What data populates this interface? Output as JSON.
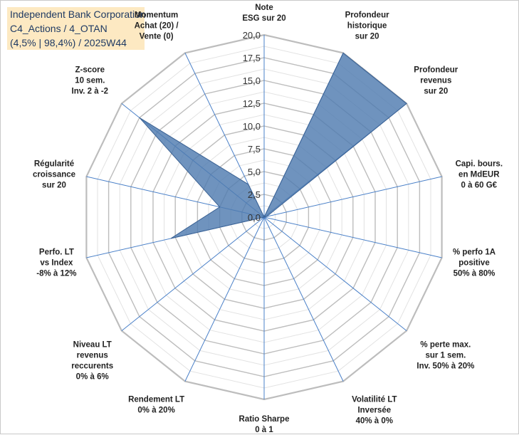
{
  "title_lines": [
    "Independent Bank Corporation",
    "C4_Actions / 4_OTAN",
    "(4,5% | 98,4%) / 2025W44"
  ],
  "colors": {
    "fill": "#4f7bb0",
    "stroke": "#3b6294",
    "grid": "#c8c8c8",
    "spoke": "#4a80c8",
    "title_bg": "#fde9c2"
  },
  "chart_data": {
    "type": "radar",
    "ylim": [
      0,
      20
    ],
    "tick_labels": [
      "0,0",
      "2,5",
      "5,0",
      "7,5",
      "10,0",
      "12,5",
      "15,0",
      "17,5",
      "20,0"
    ],
    "axes": [
      {
        "lines": [
          "Note",
          "ESG sur 20"
        ],
        "value": 0
      },
      {
        "lines": [
          "Profondeur",
          "historique",
          "sur 20"
        ],
        "value": 20
      },
      {
        "lines": [
          "Profondeur",
          "revenus",
          "sur 20"
        ],
        "value": 20
      },
      {
        "lines": [
          "Capi. bours.",
          "en MdEUR",
          "0 à 60 G€"
        ],
        "value": 0.3
      },
      {
        "lines": [
          "% perfo 1A",
          "positive",
          "50% à 80%"
        ],
        "value": 0
      },
      {
        "lines": [
          "% perte max.",
          "sur 1 sem.",
          "Inv. 50% à 20%"
        ],
        "value": 0
      },
      {
        "lines": [
          "Volatilité LT",
          "Inversée",
          "40% à 0%"
        ],
        "value": 0
      },
      {
        "lines": [
          "Ratio Sharpe",
          "0 à 1"
        ],
        "value": 0
      },
      {
        "lines": [
          "Rendement LT",
          "0% à 20%"
        ],
        "value": 0
      },
      {
        "lines": [
          "Niveau LT",
          "revenus",
          "reccurents",
          "0% à 6%"
        ],
        "value": 0
      },
      {
        "lines": [
          "Perfo. LT",
          "vs Index",
          "-8% à 12%"
        ],
        "value": 10.5
      },
      {
        "lines": [
          "Régularité",
          "croissance",
          "sur 20"
        ],
        "value": 5
      },
      {
        "lines": [
          "Z-score",
          "10 sem.",
          "Inv. 2 à -2"
        ],
        "value": 0
      },
      {
        "lines": [
          "Z-score",
          "10 sem.",
          "Inv. 2 à -2"
        ],
        "value": 17.5
      },
      {
        "lines": [
          "Momentum",
          "Achat (20) /",
          "Vente (0)"
        ],
        "value": 4
      }
    ]
  }
}
